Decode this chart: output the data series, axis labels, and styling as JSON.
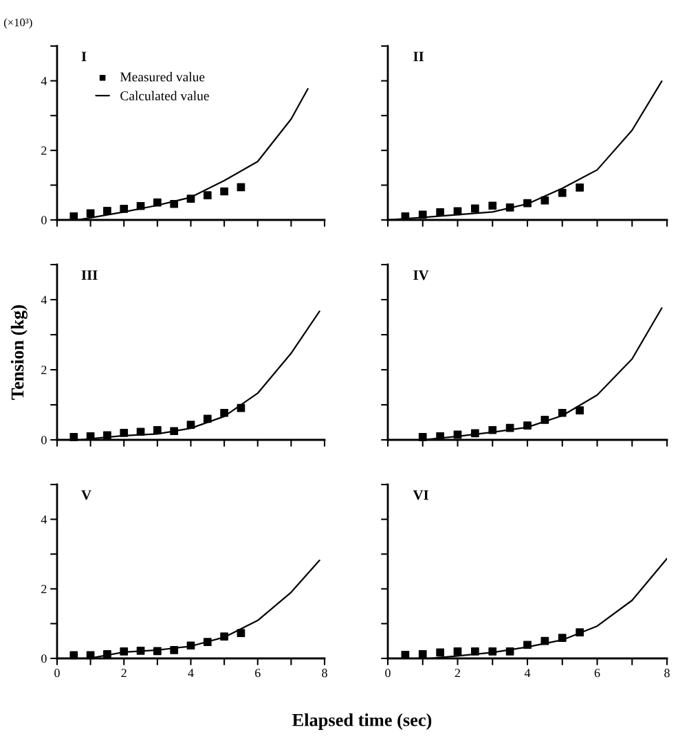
{
  "chart_data": [
    {
      "type": "scatter",
      "title": "I",
      "annotations": [
        "(×10³)"
      ],
      "legend": "top left",
      "xlim": [
        0,
        8
      ],
      "ylim": [
        0,
        5
      ],
      "xticks": [
        {
          "value": 0,
          "label": null
        },
        {
          "value": 1,
          "label": null
        },
        {
          "value": 2,
          "label": null
        },
        {
          "value": 3,
          "label": null
        },
        {
          "value": 4,
          "label": null
        },
        {
          "value": 5,
          "label": null
        },
        {
          "value": 6,
          "label": null
        },
        {
          "value": 7,
          "label": null
        },
        {
          "value": 8,
          "label": null
        }
      ],
      "yticks": [
        0,
        {
          "value": 1,
          "label": null
        },
        2,
        {
          "value": 3,
          "label": null
        },
        4,
        {
          "value": 5,
          "label": null
        }
      ],
      "tick_labels": "y",
      "series": [
        {
          "name": "Measured value",
          "marker": "square",
          "color": "#000000",
          "x": [
            0.5,
            1,
            1.5,
            2,
            2.5,
            3,
            3.5,
            4,
            4.5,
            5,
            5.5
          ],
          "values": [
            0.1,
            0.19,
            0.26,
            0.32,
            0.4,
            0.5,
            0.46,
            0.61,
            0.71,
            0.82,
            0.94
          ]
        },
        {
          "name": "Calculated value",
          "type": "line",
          "marker": "none",
          "color": "#000000",
          "x": [
            0.6,
            1,
            2,
            3,
            4,
            5,
            6,
            7,
            7.5
          ],
          "values": [
            0,
            0.06,
            0.23,
            0.42,
            0.65,
            1.13,
            1.68,
            2.9,
            3.77
          ]
        }
      ]
    },
    {
      "type": "scatter",
      "title": "II",
      "xlim": [
        0,
        8
      ],
      "ylim": [
        0,
        5
      ],
      "xticks": [
        {
          "value": 0,
          "label": null
        },
        {
          "value": 1,
          "label": null
        },
        {
          "value": 2,
          "label": null
        },
        {
          "value": 3,
          "label": null
        },
        {
          "value": 4,
          "label": null
        },
        {
          "value": 5,
          "label": null
        },
        {
          "value": 6,
          "label": null
        },
        {
          "value": 7,
          "label": null
        },
        {
          "value": 8,
          "label": null
        }
      ],
      "yticks": [
        {
          "value": 0,
          "label": null
        },
        {
          "value": 1,
          "label": null
        },
        {
          "value": 2,
          "label": null
        },
        {
          "value": 3,
          "label": null
        },
        {
          "value": 4,
          "label": null
        },
        {
          "value": 5,
          "label": null
        }
      ],
      "tick_labels": false,
      "series": [
        {
          "marker": "square",
          "color": "#000000",
          "x": [
            0.5,
            1,
            1.5,
            2,
            2.5,
            3,
            3.5,
            4,
            4.5,
            5,
            5.5
          ],
          "values": [
            0.1,
            0.15,
            0.22,
            0.25,
            0.33,
            0.41,
            0.36,
            0.48,
            0.56,
            0.78,
            0.93
          ]
        },
        {
          "type": "line",
          "marker": "none",
          "color": "#000000",
          "x": [
            0,
            1,
            2,
            3,
            4,
            5,
            6,
            7,
            7.85
          ],
          "values": [
            0,
            0.07,
            0.15,
            0.23,
            0.46,
            0.91,
            1.44,
            2.58,
            3.99
          ]
        }
      ]
    },
    {
      "type": "scatter",
      "title": "III",
      "ylabel": "Tension (kg)",
      "xlim": [
        0,
        8
      ],
      "ylim": [
        0,
        5
      ],
      "xticks": [
        {
          "value": 0,
          "label": null
        },
        {
          "value": 1,
          "label": null
        },
        {
          "value": 2,
          "label": null
        },
        {
          "value": 3,
          "label": null
        },
        {
          "value": 4,
          "label": null
        },
        {
          "value": 5,
          "label": null
        },
        {
          "value": 6,
          "label": null
        },
        {
          "value": 7,
          "label": null
        },
        {
          "value": 8,
          "label": null
        }
      ],
      "yticks": [
        0,
        {
          "value": 1,
          "label": null
        },
        2,
        {
          "value": 3,
          "label": null
        },
        4,
        {
          "value": 5,
          "label": null
        }
      ],
      "tick_labels": "y",
      "series": [
        {
          "marker": "square",
          "color": "#000000",
          "x": [
            0.5,
            1,
            1.5,
            2,
            2.5,
            3,
            3.5,
            4,
            4.5,
            5,
            5.5
          ],
          "values": [
            0.08,
            0.1,
            0.13,
            0.2,
            0.23,
            0.28,
            0.25,
            0.43,
            0.6,
            0.77,
            0.91
          ]
        },
        {
          "type": "line",
          "marker": "none",
          "color": "#000000",
          "x": [
            0.7,
            1,
            2,
            3,
            4,
            5,
            6,
            7,
            7.85
          ],
          "values": [
            0,
            0.03,
            0.12,
            0.17,
            0.33,
            0.67,
            1.33,
            2.47,
            3.67
          ]
        }
      ]
    },
    {
      "type": "scatter",
      "title": "IV",
      "xlim": [
        0,
        8
      ],
      "ylim": [
        0,
        5
      ],
      "xticks": [
        {
          "value": 0,
          "label": null
        },
        {
          "value": 1,
          "label": null
        },
        {
          "value": 2,
          "label": null
        },
        {
          "value": 3,
          "label": null
        },
        {
          "value": 4,
          "label": null
        },
        {
          "value": 5,
          "label": null
        },
        {
          "value": 6,
          "label": null
        },
        {
          "value": 7,
          "label": null
        },
        {
          "value": 8,
          "label": null
        }
      ],
      "yticks": [
        {
          "value": 0,
          "label": null
        },
        {
          "value": 1,
          "label": null
        },
        {
          "value": 2,
          "label": null
        },
        {
          "value": 3,
          "label": null
        },
        {
          "value": 4,
          "label": null
        },
        {
          "value": 5,
          "label": null
        }
      ],
      "tick_labels": false,
      "series": [
        {
          "marker": "square",
          "color": "#000000",
          "x": [
            1,
            1.5,
            2,
            2.5,
            3,
            3.5,
            4,
            4.5,
            5,
            5.5
          ],
          "values": [
            0.08,
            0.1,
            0.15,
            0.19,
            0.28,
            0.34,
            0.41,
            0.57,
            0.77,
            0.84
          ]
        },
        {
          "type": "line",
          "marker": "none",
          "color": "#000000",
          "x": [
            1,
            2,
            3,
            4,
            5,
            6,
            7,
            7.85
          ],
          "values": [
            0,
            0.1,
            0.22,
            0.36,
            0.69,
            1.28,
            2.31,
            3.76
          ]
        }
      ]
    },
    {
      "type": "scatter",
      "title": "V",
      "xlabel": "Elapsed time (sec)",
      "xlim": [
        0,
        8
      ],
      "ylim": [
        0,
        5
      ],
      "xticks": [
        0,
        {
          "value": 1,
          "label": null
        },
        2,
        {
          "value": 3,
          "label": null
        },
        4,
        {
          "value": 5,
          "label": null
        },
        6,
        {
          "value": 7,
          "label": null
        },
        8
      ],
      "yticks": [
        0,
        {
          "value": 1,
          "label": null
        },
        2,
        {
          "value": 3,
          "label": null
        },
        4,
        {
          "value": 5,
          "label": null
        }
      ],
      "series": [
        {
          "marker": "square",
          "color": "#000000",
          "x": [
            0.5,
            1,
            1.5,
            2,
            2.5,
            3,
            3.5,
            4,
            4.5,
            5,
            5.5
          ],
          "values": [
            0.09,
            0.09,
            0.12,
            0.2,
            0.22,
            0.21,
            0.24,
            0.37,
            0.47,
            0.63,
            0.73
          ]
        },
        {
          "type": "line",
          "marker": "none",
          "color": "#000000",
          "x": [
            0.8,
            1,
            2,
            3,
            4,
            5,
            6,
            7,
            7.85
          ],
          "values": [
            0,
            0.01,
            0.18,
            0.24,
            0.35,
            0.61,
            1.09,
            1.9,
            2.82
          ]
        }
      ]
    },
    {
      "type": "scatter",
      "title": "VI",
      "xlim": [
        0,
        8
      ],
      "ylim": [
        0,
        5
      ],
      "xticks": [
        0,
        {
          "value": 1,
          "label": null
        },
        2,
        {
          "value": 3,
          "label": null
        },
        4,
        {
          "value": 5,
          "label": null
        },
        6,
        {
          "value": 7,
          "label": null
        },
        8
      ],
      "yticks": [
        {
          "value": 0,
          "label": null
        },
        {
          "value": 1,
          "label": null
        },
        {
          "value": 2,
          "label": null
        },
        {
          "value": 3,
          "label": null
        },
        {
          "value": 4,
          "label": null
        },
        {
          "value": 5,
          "label": null
        }
      ],
      "tick_labels": "x",
      "series": [
        {
          "marker": "square",
          "color": "#000000",
          "x": [
            0.5,
            1,
            1.5,
            2,
            2.5,
            3,
            3.5,
            4,
            4.5,
            5,
            5.5
          ],
          "values": [
            0.1,
            0.12,
            0.17,
            0.2,
            0.2,
            0.2,
            0.2,
            0.39,
            0.5,
            0.59,
            0.75
          ]
        },
        {
          "type": "line",
          "marker": "none",
          "color": "#000000",
          "x": [
            1.2,
            2,
            3,
            4,
            5,
            6,
            7,
            8
          ],
          "values": [
            0,
            0.07,
            0.17,
            0.33,
            0.53,
            0.93,
            1.67,
            2.87
          ]
        }
      ]
    }
  ]
}
